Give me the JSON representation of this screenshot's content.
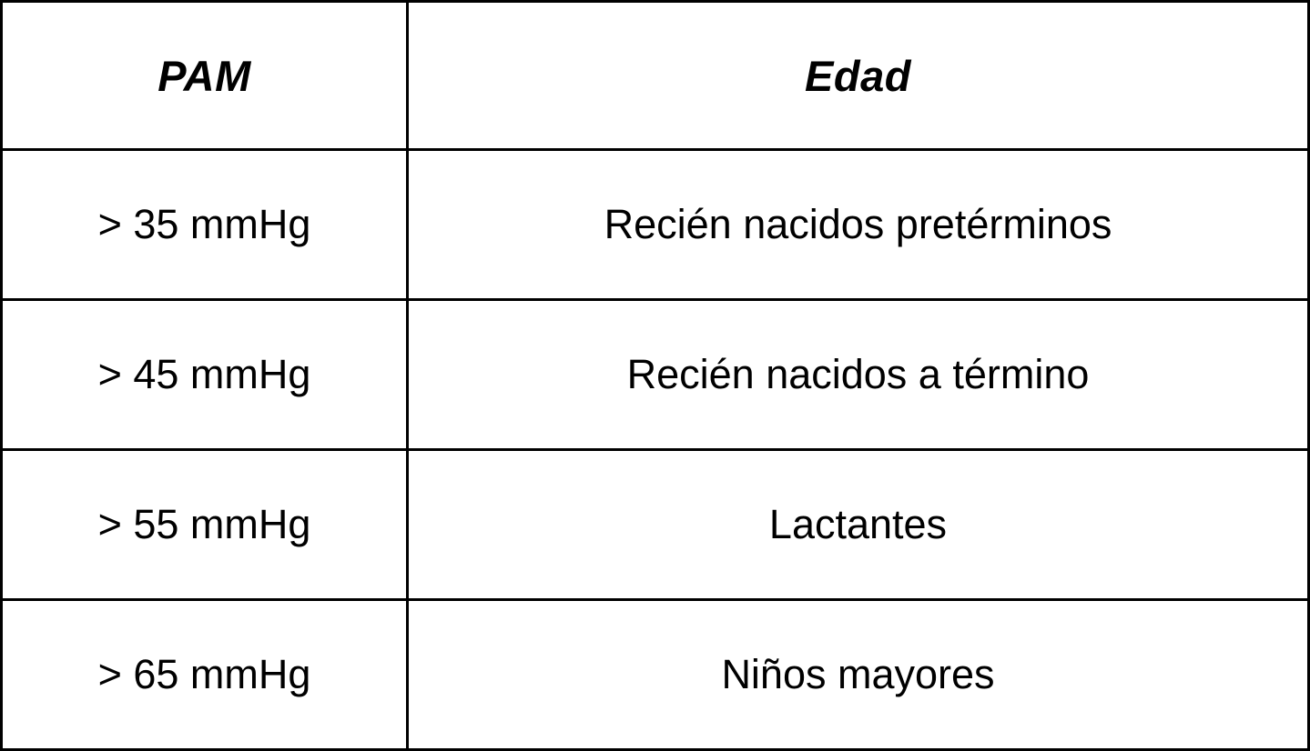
{
  "table": {
    "columns": [
      {
        "id": "pam",
        "label": "PAM"
      },
      {
        "id": "edad",
        "label": "Edad"
      }
    ],
    "rows": [
      {
        "pam": "> 35 mmHg",
        "edad": "Recién nacidos pretérminos"
      },
      {
        "pam": "> 45 mmHg",
        "edad": "Recién nacidos a término"
      },
      {
        "pam": "> 55 mmHg",
        "edad": "Lactantes"
      },
      {
        "pam": "> 65 mmHg",
        "edad": "Niños mayores"
      }
    ]
  },
  "colors": {
    "border": "#000000",
    "text": "#000000",
    "background": "#ffffff"
  }
}
